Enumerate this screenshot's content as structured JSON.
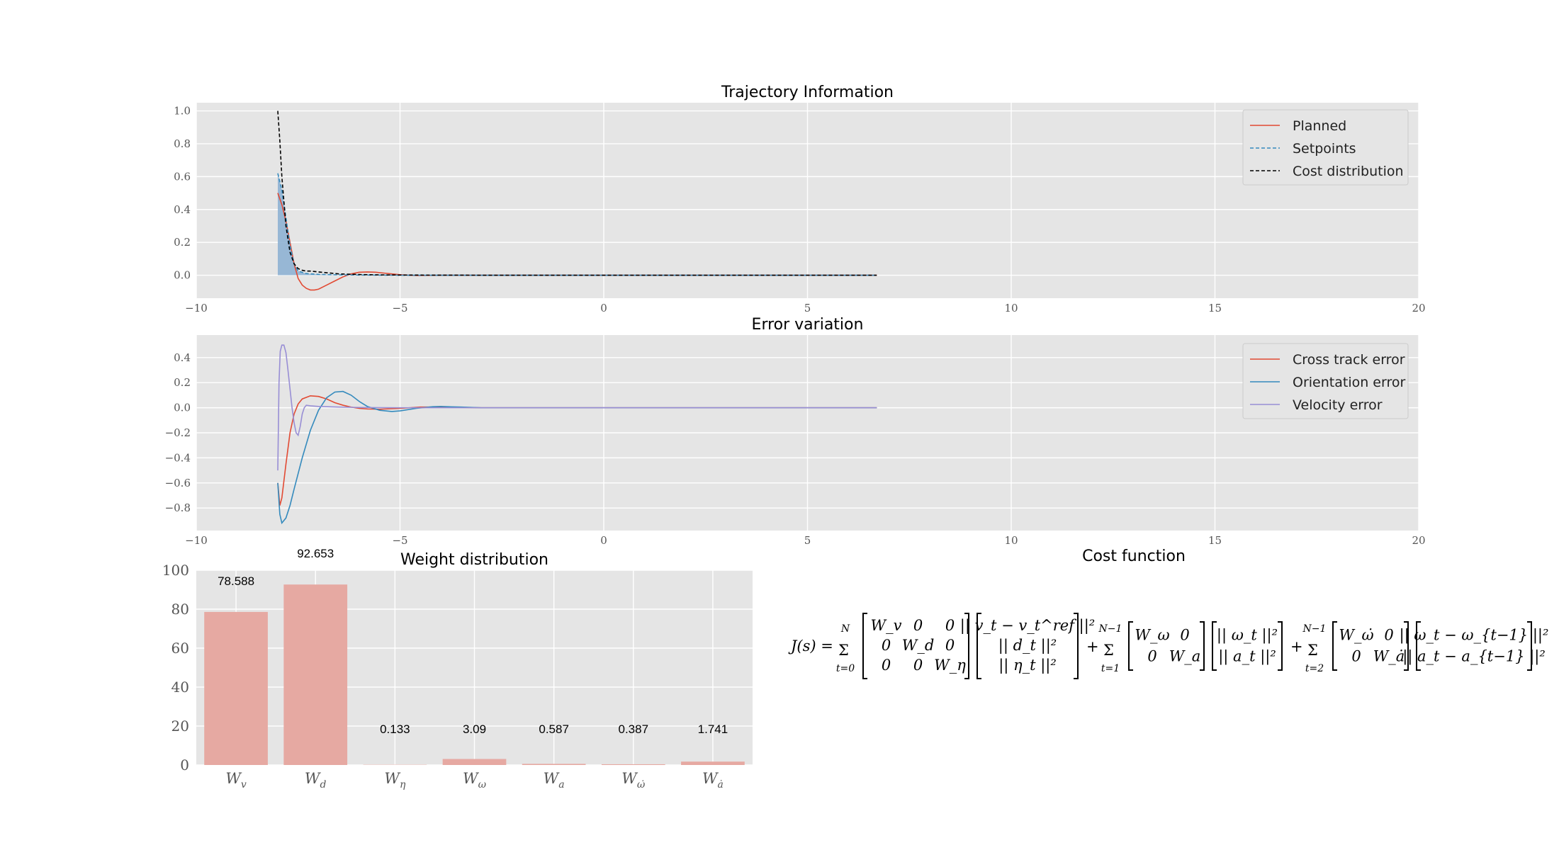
{
  "chart_data": [
    {
      "type": "line",
      "title": "Trajectory Information",
      "xlim": [
        -10,
        20
      ],
      "ylim": [
        -0.14,
        1.05
      ],
      "xticks": [
        "−10",
        "−5",
        "0",
        "5",
        "10",
        "15",
        "20"
      ],
      "yticks": [
        "0.0",
        "0.2",
        "0.4",
        "0.6",
        "0.8",
        "1.0"
      ],
      "grid": true,
      "legend_position": "top-right",
      "series": [
        {
          "name": "Planned",
          "color": "#E24A33",
          "style": "solid",
          "x": [
            -8.0,
            -7.9,
            -7.8,
            -7.7,
            -7.6,
            -7.5,
            -7.4,
            -7.3,
            -7.2,
            -7.1,
            -7.0,
            -6.8,
            -6.6,
            -6.4,
            -6.2,
            -6.0,
            -5.8,
            -5.6,
            -5.4,
            -5.2,
            -5.0,
            -4.6,
            -4.0,
            -3.0,
            0.0,
            3.0,
            6.7
          ],
          "y": [
            0.5,
            0.43,
            0.33,
            0.2,
            0.07,
            -0.02,
            -0.06,
            -0.08,
            -0.09,
            -0.09,
            -0.085,
            -0.06,
            -0.035,
            -0.01,
            0.008,
            0.018,
            0.02,
            0.018,
            0.013,
            0.008,
            0.003,
            -0.002,
            0.0,
            0.0,
            0.0,
            0.0,
            0.0
          ]
        },
        {
          "name": "Setpoints",
          "color": "#348ABD",
          "style": "dashed",
          "x": [
            -8.0,
            -7.9,
            -7.8,
            -7.7,
            -7.6,
            -7.5,
            -7.3,
            -7.0,
            -6.5,
            -6.0,
            -5.0,
            -3.0,
            0.0,
            3.0,
            6.7
          ],
          "y": [
            0.62,
            0.52,
            0.35,
            0.18,
            0.07,
            0.025,
            0.01,
            0.005,
            0.002,
            0.001,
            0.0,
            0.0,
            0.0,
            0.0,
            0.0
          ]
        },
        {
          "name": "Cost distribution",
          "color": "#000000",
          "style": "dashed",
          "x": [
            -8.0,
            -7.95,
            -7.9,
            -7.85,
            -7.8,
            -7.7,
            -7.6,
            -7.5,
            -7.4,
            -7.3,
            -7.2,
            -7.0,
            -6.8,
            -6.5,
            -6.0,
            -5.5,
            -5.0,
            -3.0,
            0.0,
            3.0,
            6.7
          ],
          "y": [
            1.0,
            0.82,
            0.6,
            0.45,
            0.3,
            0.14,
            0.07,
            0.04,
            0.03,
            0.025,
            0.025,
            0.02,
            0.015,
            0.008,
            0.004,
            0.002,
            0.001,
            0.0,
            0.0,
            0.0,
            0.0
          ]
        }
      ]
    },
    {
      "type": "line",
      "title": "Error variation",
      "xlim": [
        -10,
        20
      ],
      "ylim": [
        -0.98,
        0.58
      ],
      "xticks": [
        "−10",
        "−5",
        "0",
        "5",
        "10",
        "15",
        "20"
      ],
      "yticks": [
        "−0.8",
        "−0.6",
        "−0.4",
        "−0.2",
        "0.0",
        "0.2",
        "0.4"
      ],
      "grid": true,
      "legend_position": "top-right",
      "series": [
        {
          "name": "Cross track error",
          "color": "#E24A33",
          "x": [
            -8.0,
            -7.95,
            -7.9,
            -7.8,
            -7.7,
            -7.6,
            -7.5,
            -7.4,
            -7.2,
            -7.0,
            -6.8,
            -6.6,
            -6.4,
            -6.2,
            -6.0,
            -5.8,
            -5.5,
            -5.0,
            -4.5,
            -4.0,
            -3.5,
            -3.0,
            0.0,
            3.0,
            6.7
          ],
          "y": [
            -0.6,
            -0.78,
            -0.72,
            -0.45,
            -0.2,
            -0.05,
            0.03,
            0.07,
            0.095,
            0.09,
            0.07,
            0.04,
            0.02,
            0.005,
            -0.005,
            -0.01,
            -0.012,
            -0.005,
            0.005,
            0.005,
            0.002,
            0.0,
            0.0,
            0.0,
            0.0
          ]
        },
        {
          "name": "Orientation error",
          "color": "#348ABD",
          "x": [
            -8.0,
            -7.95,
            -7.9,
            -7.8,
            -7.7,
            -7.6,
            -7.4,
            -7.2,
            -7.0,
            -6.8,
            -6.6,
            -6.4,
            -6.2,
            -6.0,
            -5.8,
            -5.5,
            -5.2,
            -5.0,
            -4.6,
            -4.2,
            -4.0,
            -3.5,
            -3.0,
            0.0,
            3.0,
            6.7
          ],
          "y": [
            -0.6,
            -0.85,
            -0.92,
            -0.88,
            -0.78,
            -0.65,
            -0.4,
            -0.18,
            -0.02,
            0.08,
            0.125,
            0.13,
            0.1,
            0.05,
            0.01,
            -0.02,
            -0.03,
            -0.025,
            -0.005,
            0.008,
            0.01,
            0.005,
            0.0,
            0.0,
            0.0,
            0.0
          ]
        },
        {
          "name": "Velocity error",
          "color": "#988ED5",
          "x": [
            -8.0,
            -7.97,
            -7.94,
            -7.9,
            -7.85,
            -7.8,
            -7.75,
            -7.7,
            -7.65,
            -7.6,
            -7.55,
            -7.5,
            -7.45,
            -7.4,
            -7.35,
            -7.3,
            -7.2,
            -7.0,
            -6.5,
            -6.0,
            -5.0,
            -4.0,
            -3.0,
            0.0,
            3.0,
            6.7
          ],
          "y": [
            -0.5,
            0.2,
            0.45,
            0.5,
            0.5,
            0.44,
            0.3,
            0.15,
            0.0,
            -0.12,
            -0.2,
            -0.22,
            -0.15,
            -0.05,
            0.0,
            0.02,
            0.015,
            0.01,
            0.005,
            0.002,
            0.0,
            0.0,
            0.0,
            0.0,
            0.0,
            0.0
          ]
        }
      ]
    },
    {
      "type": "bar",
      "title": "Weight distribution",
      "categories": [
        "W_v",
        "W_d",
        "W_η",
        "W_ω",
        "W_a",
        "W_ω̇",
        "W_ȧ"
      ],
      "values": [
        78.588,
        92.653,
        0.133,
        3.09,
        0.587,
        0.387,
        1.741
      ],
      "labels": [
        "78.588",
        "92.653",
        "0.133",
        "3.09",
        "0.587",
        "0.387",
        "1.741"
      ],
      "ylim": [
        0,
        100
      ],
      "yticks": [
        "0",
        "20",
        "40",
        "60",
        "80",
        "100"
      ],
      "color": "#E6A9A2",
      "grid": true
    }
  ],
  "cost_function": {
    "title": "Cost function",
    "lhs": "J(s) =",
    "sum1": {
      "upper": "N",
      "lower": "t=0"
    },
    "sum2": {
      "upper": "N−1",
      "lower": "t=1"
    },
    "sum3": {
      "upper": "N−1",
      "lower": "t=2"
    },
    "m1": [
      [
        "W_v",
        "0",
        "0"
      ],
      [
        "0",
        "W_d",
        "0"
      ],
      [
        "0",
        "0",
        "W_η"
      ]
    ],
    "v1": [
      "|| v_t − v_t^ref ||²",
      "|| d_t ||²",
      "|| η_t ||²"
    ],
    "m2": [
      [
        "W_ω",
        "0"
      ],
      [
        "0",
        "W_a"
      ]
    ],
    "v2": [
      "|| ω_t ||²",
      "|| a_t ||²"
    ],
    "m3": [
      [
        "W_ω̇",
        "0"
      ],
      [
        "0",
        "W_ȧ"
      ]
    ],
    "v3": [
      "|| ω_t − ω_{t−1} ||²",
      "|| a_t − a_{t−1} ||²"
    ],
    "plus": "+"
  }
}
